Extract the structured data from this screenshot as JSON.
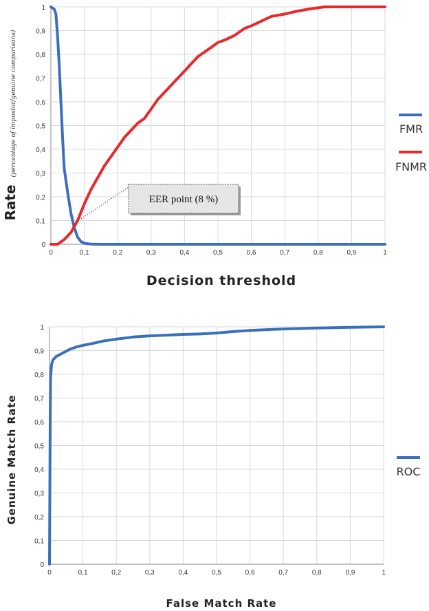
{
  "chart_data": [
    {
      "type": "line",
      "xlabel": "Decision threshold",
      "ylabel": "Rate",
      "ylabel_sub": "(percentage of impostor/genuine comparisons)",
      "xlim": [
        0,
        1
      ],
      "ylim": [
        0,
        1
      ],
      "x_ticks": [
        "0",
        "0,1",
        "0,2",
        "0,3",
        "0,4",
        "0,5",
        "0,6",
        "0,7",
        "0,8",
        "0,9",
        "1"
      ],
      "y_ticks": [
        "0",
        "0,1",
        "0,2",
        "0,3",
        "0,4",
        "0,5",
        "0,6",
        "0,7",
        "0,8",
        "0,9",
        "1"
      ],
      "grid": true,
      "legend_position": "right",
      "annotation": {
        "text": "EER point (8 %)",
        "x": 0.08,
        "y": 0.09
      },
      "series": [
        {
          "name": "FMR",
          "color": "#3a6fbf",
          "points": [
            [
              0,
              1
            ],
            [
              0.01,
              0.99
            ],
            [
              0.015,
              0.97
            ],
            [
              0.02,
              0.88
            ],
            [
              0.025,
              0.75
            ],
            [
              0.03,
              0.6
            ],
            [
              0.035,
              0.45
            ],
            [
              0.04,
              0.32
            ],
            [
              0.05,
              0.22
            ],
            [
              0.06,
              0.13
            ],
            [
              0.07,
              0.07
            ],
            [
              0.08,
              0.03
            ],
            [
              0.09,
              0.012
            ],
            [
              0.1,
              0.004
            ],
            [
              0.12,
              0.001
            ],
            [
              0.15,
              0
            ],
            [
              1,
              0
            ]
          ]
        },
        {
          "name": "FNMR",
          "color": "#e8282b",
          "points": [
            [
              0,
              0
            ],
            [
              0.02,
              0
            ],
            [
              0.04,
              0.02
            ],
            [
              0.06,
              0.05
            ],
            [
              0.08,
              0.1
            ],
            [
              0.1,
              0.17
            ],
            [
              0.12,
              0.23
            ],
            [
              0.14,
              0.28
            ],
            [
              0.16,
              0.33
            ],
            [
              0.18,
              0.37
            ],
            [
              0.2,
              0.41
            ],
            [
              0.22,
              0.45
            ],
            [
              0.24,
              0.48
            ],
            [
              0.26,
              0.51
            ],
            [
              0.28,
              0.53
            ],
            [
              0.3,
              0.57
            ],
            [
              0.32,
              0.61
            ],
            [
              0.34,
              0.64
            ],
            [
              0.36,
              0.67
            ],
            [
              0.38,
              0.7
            ],
            [
              0.4,
              0.73
            ],
            [
              0.42,
              0.76
            ],
            [
              0.44,
              0.79
            ],
            [
              0.46,
              0.81
            ],
            [
              0.48,
              0.83
            ],
            [
              0.5,
              0.85
            ],
            [
              0.52,
              0.86
            ],
            [
              0.55,
              0.88
            ],
            [
              0.58,
              0.91
            ],
            [
              0.6,
              0.92
            ],
            [
              0.63,
              0.94
            ],
            [
              0.66,
              0.96
            ],
            [
              0.7,
              0.97
            ],
            [
              0.73,
              0.98
            ],
            [
              0.77,
              0.99
            ],
            [
              0.82,
              1
            ],
            [
              1,
              1
            ]
          ]
        }
      ]
    },
    {
      "type": "line",
      "xlabel": "False Match Rate",
      "ylabel": "Genuine Match Rate",
      "xlim": [
        0,
        1
      ],
      "ylim": [
        0,
        1
      ],
      "x_ticks": [
        "0",
        "0,1",
        "0,2",
        "0,3",
        "0,4",
        "0,5",
        "0,6",
        "0,7",
        "0,8",
        "0,9",
        "1"
      ],
      "y_ticks": [
        "0",
        "0,1",
        "0,2",
        "0,3",
        "0,4",
        "0,5",
        "0,6",
        "0,7",
        "0,8",
        "0,9",
        "1"
      ],
      "grid": true,
      "legend_position": "right",
      "series": [
        {
          "name": "ROC",
          "color": "#3a6fbf",
          "points": [
            [
              0,
              0
            ],
            [
              0.001,
              0.3
            ],
            [
              0.002,
              0.6
            ],
            [
              0.003,
              0.78
            ],
            [
              0.006,
              0.84
            ],
            [
              0.01,
              0.86
            ],
            [
              0.02,
              0.875
            ],
            [
              0.04,
              0.89
            ],
            [
              0.06,
              0.905
            ],
            [
              0.08,
              0.915
            ],
            [
              0.1,
              0.922
            ],
            [
              0.13,
              0.93
            ],
            [
              0.16,
              0.94
            ],
            [
              0.2,
              0.948
            ],
            [
              0.25,
              0.957
            ],
            [
              0.3,
              0.962
            ],
            [
              0.35,
              0.965
            ],
            [
              0.4,
              0.968
            ],
            [
              0.45,
              0.97
            ],
            [
              0.5,
              0.974
            ],
            [
              0.55,
              0.98
            ],
            [
              0.6,
              0.985
            ],
            [
              0.65,
              0.988
            ],
            [
              0.7,
              0.991
            ],
            [
              0.8,
              0.995
            ],
            [
              0.9,
              0.998
            ],
            [
              1,
              1
            ]
          ]
        }
      ]
    }
  ]
}
